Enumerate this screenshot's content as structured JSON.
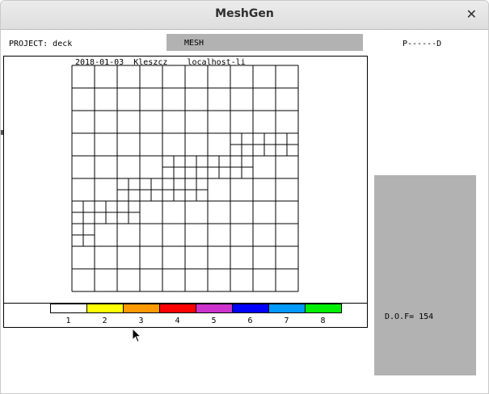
{
  "window": {
    "title": "MeshGen",
    "close_icon": "close-icon"
  },
  "header": {
    "project": "PROJECT: deck",
    "mesh_label": "MESH",
    "pd_label": "P------D"
  },
  "mesh": {
    "info_line": "2018-01-03  Kleszcz    localhost-li",
    "grid_color": "#000000"
  },
  "legend": {
    "items": [
      {
        "label": "1",
        "color": "#ffffff"
      },
      {
        "label": "2",
        "color": "#ffff00"
      },
      {
        "label": "3",
        "color": "#ff9900"
      },
      {
        "label": "4",
        "color": "#ff0000"
      },
      {
        "label": "5",
        "color": "#cc33cc"
      },
      {
        "label": "6",
        "color": "#0000ff"
      },
      {
        "label": "7",
        "color": "#0099ff"
      },
      {
        "label": "8",
        "color": "#00ee00"
      }
    ]
  },
  "side_panel": {
    "dof": "D.O.F= 154",
    "color": "#b2b2b2"
  }
}
